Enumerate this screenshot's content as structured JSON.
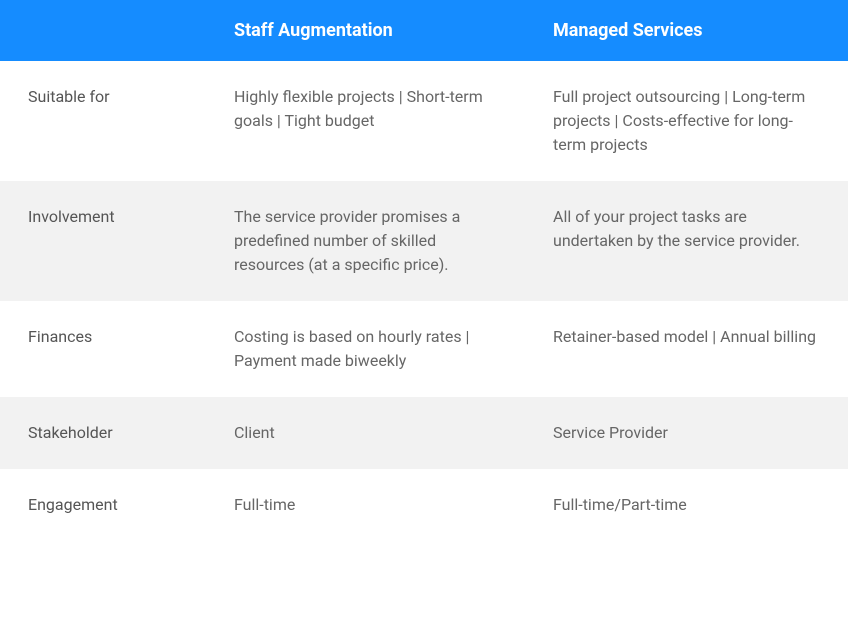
{
  "table": {
    "type": "table",
    "header_bg": "#158cff",
    "header_text_color": "#ffffff",
    "body_text_color": "#666666",
    "row_bg_odd": "#ffffff",
    "row_bg_even": "#f2f2f2",
    "font_family": "Roboto, Helvetica, Arial, sans-serif",
    "header_font_size": 18,
    "body_font_size": 16,
    "columns": [
      {
        "key": "label",
        "header": ""
      },
      {
        "key": "staff_aug",
        "header": "Staff Augmentation"
      },
      {
        "key": "managed",
        "header": "Managed Services"
      }
    ],
    "rows": [
      {
        "label": "Suitable for",
        "staff_aug": "Highly flexible projects | Short-term goals | Tight budget",
        "managed": "Full project outsourcing | Long-term projects | Costs-effective for long-term projects"
      },
      {
        "label": "Involvement",
        "staff_aug": "The service provider promises a predefined number of skilled resources (at a specific price).",
        "managed": "All of your project tasks are undertaken by the service provider."
      },
      {
        "label": "Finances",
        "staff_aug": "Costing is based on hourly rates | Payment made biweekly",
        "managed": "Retainer-based model | Annual billing"
      },
      {
        "label": "Stakeholder",
        "staff_aug": "Client",
        "managed": "Service Provider"
      },
      {
        "label": "Engagement",
        "staff_aug": "Full-time",
        "managed": "Full-time/Part-time"
      }
    ]
  }
}
